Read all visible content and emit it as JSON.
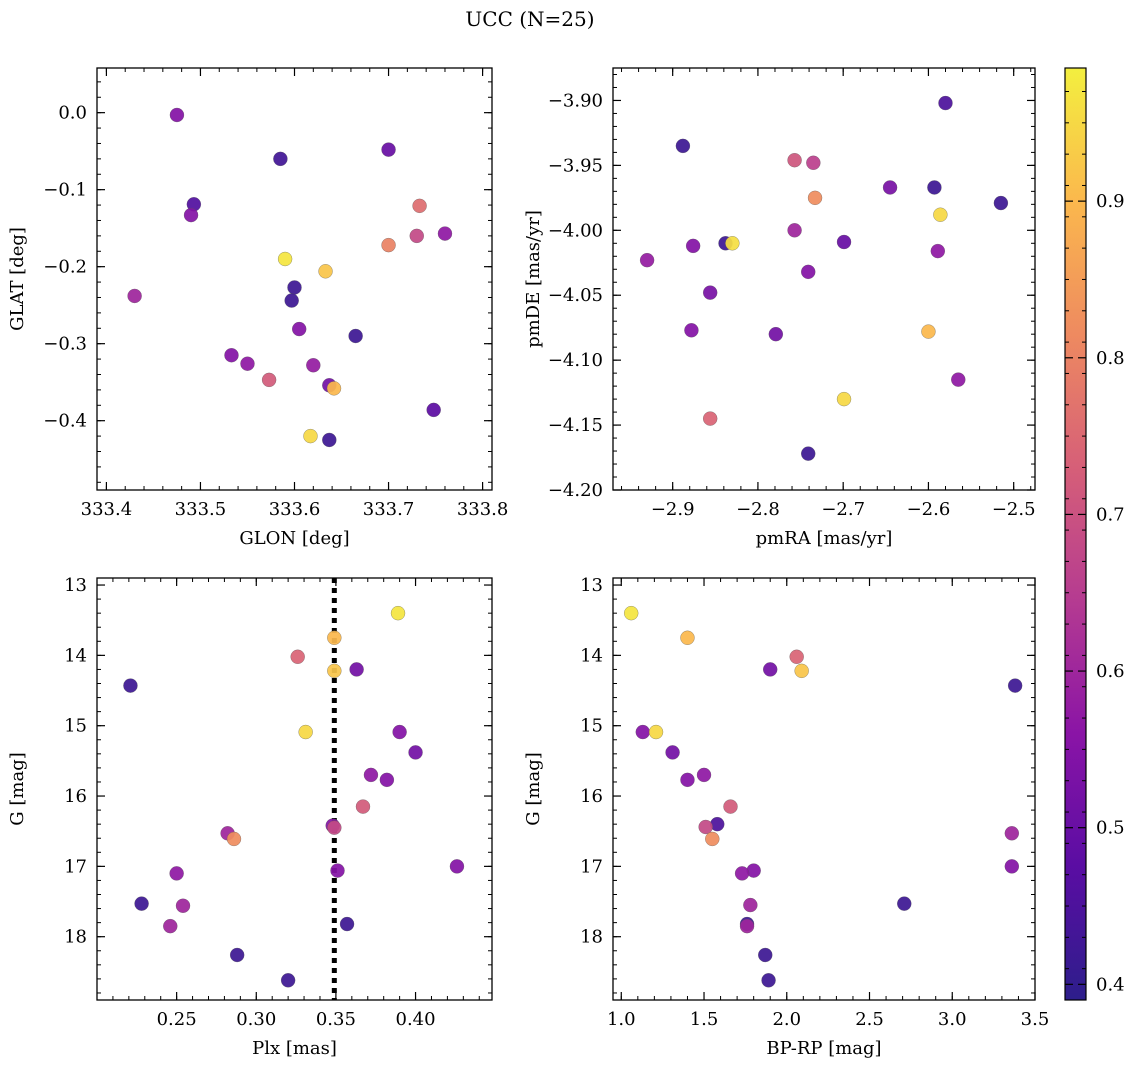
{
  "figure": {
    "title": "UCC (N=25)"
  },
  "colormap": {
    "name": "plasma",
    "vmin": 0.39,
    "vmax": 0.985,
    "ticks": [
      0.4,
      0.5,
      0.6,
      0.7,
      0.8,
      0.9
    ],
    "tick_labels": [
      "0.4",
      "0.5",
      "0.6",
      "0.7",
      "0.8",
      "0.9"
    ],
    "stops": [
      "#2d1e8b",
      "#5a0da3",
      "#8a14a6",
      "#b53b91",
      "#d65f78",
      "#ee8a60",
      "#fbb84d",
      "#f3ef3f"
    ]
  },
  "chart_data": [
    {
      "type": "scatter",
      "id": "sky",
      "xlabel": "GLON [deg]",
      "ylabel": "GLAT [deg]",
      "xlim": [
        333.39,
        333.81
      ],
      "ylim": [
        -0.49,
        0.058
      ],
      "invert_y": false,
      "xticks": [
        333.4,
        333.5,
        333.6,
        333.7,
        333.8
      ],
      "xtick_labels": [
        "333.4",
        "333.5",
        "333.6",
        "333.7",
        "333.8"
      ],
      "yticks": [
        0.0,
        -0.1,
        -0.2,
        -0.3,
        -0.4
      ],
      "ytick_labels": [
        "0.0",
        "−0.1",
        "−0.2",
        "−0.3",
        "−0.4"
      ],
      "points": [
        {
          "x": 333.475,
          "y": -0.003,
          "c": 0.55
        },
        {
          "x": 333.585,
          "y": -0.06,
          "c": 0.43
        },
        {
          "x": 333.7,
          "y": -0.048,
          "c": 0.5
        },
        {
          "x": 333.493,
          "y": -0.119,
          "c": 0.46
        },
        {
          "x": 333.49,
          "y": -0.133,
          "c": 0.55
        },
        {
          "x": 333.733,
          "y": -0.121,
          "c": 0.76
        },
        {
          "x": 333.73,
          "y": -0.16,
          "c": 0.68
        },
        {
          "x": 333.76,
          "y": -0.157,
          "c": 0.57
        },
        {
          "x": 333.7,
          "y": -0.172,
          "c": 0.8
        },
        {
          "x": 333.59,
          "y": -0.19,
          "c": 0.97
        },
        {
          "x": 333.633,
          "y": -0.206,
          "c": 0.92
        },
        {
          "x": 333.43,
          "y": -0.238,
          "c": 0.6
        },
        {
          "x": 333.6,
          "y": -0.227,
          "c": 0.42
        },
        {
          "x": 333.597,
          "y": -0.244,
          "c": 0.42
        },
        {
          "x": 333.605,
          "y": -0.281,
          "c": 0.55
        },
        {
          "x": 333.665,
          "y": -0.29,
          "c": 0.42
        },
        {
          "x": 333.533,
          "y": -0.315,
          "c": 0.55
        },
        {
          "x": 333.55,
          "y": -0.326,
          "c": 0.57
        },
        {
          "x": 333.62,
          "y": -0.328,
          "c": 0.58
        },
        {
          "x": 333.573,
          "y": -0.347,
          "c": 0.72
        },
        {
          "x": 333.637,
          "y": -0.354,
          "c": 0.52
        },
        {
          "x": 333.642,
          "y": -0.358,
          "c": 0.9
        },
        {
          "x": 333.748,
          "y": -0.386,
          "c": 0.48
        },
        {
          "x": 333.617,
          "y": -0.42,
          "c": 0.95
        },
        {
          "x": 333.637,
          "y": -0.425,
          "c": 0.42
        }
      ]
    },
    {
      "type": "scatter",
      "id": "proper-motion",
      "xlabel": "pmRA [mas/yr]",
      "ylabel": "pmDE [mas/yr]",
      "xlim": [
        -2.97,
        -2.475
      ],
      "ylim": [
        -4.2,
        -3.875
      ],
      "invert_y": false,
      "xticks": [
        -2.9,
        -2.8,
        -2.7,
        -2.6,
        -2.5
      ],
      "xtick_labels": [
        "−2.9",
        "−2.8",
        "−2.7",
        "−2.6",
        "−2.5"
      ],
      "yticks": [
        -3.9,
        -3.95,
        -4.0,
        -4.05,
        -4.1,
        -4.15,
        -4.2
      ],
      "ytick_labels": [
        "−3.90",
        "−3.95",
        "−4.00",
        "−4.05",
        "−4.10",
        "−4.15",
        "−4.20"
      ],
      "points": [
        {
          "x": -2.58,
          "y": -3.902,
          "c": 0.45
        },
        {
          "x": -2.888,
          "y": -3.935,
          "c": 0.42
        },
        {
          "x": -2.757,
          "y": -3.946,
          "c": 0.71
        },
        {
          "x": -2.735,
          "y": -3.948,
          "c": 0.66
        },
        {
          "x": -2.645,
          "y": -3.967,
          "c": 0.53
        },
        {
          "x": -2.593,
          "y": -3.967,
          "c": 0.42
        },
        {
          "x": -2.733,
          "y": -3.975,
          "c": 0.82
        },
        {
          "x": -2.515,
          "y": -3.979,
          "c": 0.42
        },
        {
          "x": -2.586,
          "y": -3.988,
          "c": 0.95
        },
        {
          "x": -2.757,
          "y": -4.0,
          "c": 0.6
        },
        {
          "x": -2.876,
          "y": -4.012,
          "c": 0.55
        },
        {
          "x": -2.838,
          "y": -4.01,
          "c": 0.42
        },
        {
          "x": -2.83,
          "y": -4.01,
          "c": 0.96
        },
        {
          "x": -2.699,
          "y": -4.009,
          "c": 0.5
        },
        {
          "x": -2.589,
          "y": -4.016,
          "c": 0.57
        },
        {
          "x": -2.93,
          "y": -4.023,
          "c": 0.58
        },
        {
          "x": -2.741,
          "y": -4.032,
          "c": 0.55
        },
        {
          "x": -2.856,
          "y": -4.048,
          "c": 0.53
        },
        {
          "x": -2.878,
          "y": -4.077,
          "c": 0.55
        },
        {
          "x": -2.779,
          "y": -4.08,
          "c": 0.52
        },
        {
          "x": -2.6,
          "y": -4.078,
          "c": 0.9
        },
        {
          "x": -2.565,
          "y": -4.115,
          "c": 0.57
        },
        {
          "x": -2.699,
          "y": -4.13,
          "c": 0.95
        },
        {
          "x": -2.856,
          "y": -4.145,
          "c": 0.74
        },
        {
          "x": -2.741,
          "y": -4.172,
          "c": 0.42
        }
      ]
    },
    {
      "type": "scatter",
      "id": "parallax-mag",
      "xlabel": "Plx [mas]",
      "ylabel": "G [mag]",
      "xlim": [
        0.2,
        0.448
      ],
      "ylim": [
        12.9,
        18.9
      ],
      "invert_y": true,
      "xticks": [
        0.25,
        0.3,
        0.35,
        0.4
      ],
      "xtick_labels": [
        "0.25",
        "0.30",
        "0.35",
        "0.40"
      ],
      "yticks": [
        13,
        14,
        15,
        16,
        17,
        18
      ],
      "ytick_labels": [
        "13",
        "14",
        "15",
        "16",
        "17",
        "18"
      ],
      "vline": {
        "x": 0.349,
        "style": "dotted"
      },
      "points": [
        {
          "x": 0.389,
          "y": 13.4,
          "c": 0.97
        },
        {
          "x": 0.349,
          "y": 13.75,
          "c": 0.9
        },
        {
          "x": 0.326,
          "y": 14.02,
          "c": 0.74
        },
        {
          "x": 0.349,
          "y": 14.22,
          "c": 0.92
        },
        {
          "x": 0.363,
          "y": 14.2,
          "c": 0.52
        },
        {
          "x": 0.221,
          "y": 14.43,
          "c": 0.42
        },
        {
          "x": 0.331,
          "y": 15.09,
          "c": 0.95
        },
        {
          "x": 0.39,
          "y": 15.09,
          "c": 0.55
        },
        {
          "x": 0.4,
          "y": 15.38,
          "c": 0.52
        },
        {
          "x": 0.372,
          "y": 15.7,
          "c": 0.57
        },
        {
          "x": 0.382,
          "y": 15.77,
          "c": 0.55
        },
        {
          "x": 0.367,
          "y": 16.15,
          "c": 0.72
        },
        {
          "x": 0.348,
          "y": 16.42,
          "c": 0.55
        },
        {
          "x": 0.349,
          "y": 16.45,
          "c": 0.68
        },
        {
          "x": 0.282,
          "y": 16.53,
          "c": 0.6
        },
        {
          "x": 0.286,
          "y": 16.61,
          "c": 0.82
        },
        {
          "x": 0.426,
          "y": 17.0,
          "c": 0.55
        },
        {
          "x": 0.351,
          "y": 17.06,
          "c": 0.55
        },
        {
          "x": 0.25,
          "y": 17.1,
          "c": 0.57
        },
        {
          "x": 0.228,
          "y": 17.53,
          "c": 0.42
        },
        {
          "x": 0.254,
          "y": 17.56,
          "c": 0.6
        },
        {
          "x": 0.357,
          "y": 17.82,
          "c": 0.42
        },
        {
          "x": 0.246,
          "y": 17.85,
          "c": 0.6
        },
        {
          "x": 0.288,
          "y": 18.26,
          "c": 0.42
        },
        {
          "x": 0.32,
          "y": 18.62,
          "c": 0.42
        }
      ]
    },
    {
      "type": "scatter",
      "id": "color-magnitude",
      "xlabel": "BP-RP [mag]",
      "ylabel": "G [mag]",
      "xlim": [
        0.95,
        3.5
      ],
      "ylim": [
        12.9,
        18.9
      ],
      "invert_y": true,
      "xticks": [
        1.0,
        1.5,
        2.0,
        2.5,
        3.0,
        3.5
      ],
      "xtick_labels": [
        "1.0",
        "1.5",
        "2.0",
        "2.5",
        "3.0",
        "3.5"
      ],
      "yticks": [
        13,
        14,
        15,
        16,
        17,
        18
      ],
      "ytick_labels": [
        "13",
        "14",
        "15",
        "16",
        "17",
        "18"
      ],
      "points": [
        {
          "x": 1.06,
          "y": 13.4,
          "c": 0.97
        },
        {
          "x": 1.4,
          "y": 13.75,
          "c": 0.9
        },
        {
          "x": 2.06,
          "y": 14.02,
          "c": 0.74
        },
        {
          "x": 1.9,
          "y": 14.2,
          "c": 0.52
        },
        {
          "x": 2.09,
          "y": 14.22,
          "c": 0.92
        },
        {
          "x": 3.38,
          "y": 14.43,
          "c": 0.42
        },
        {
          "x": 1.13,
          "y": 15.09,
          "c": 0.55
        },
        {
          "x": 1.21,
          "y": 15.09,
          "c": 0.95
        },
        {
          "x": 1.31,
          "y": 15.38,
          "c": 0.52
        },
        {
          "x": 1.5,
          "y": 15.7,
          "c": 0.57
        },
        {
          "x": 1.4,
          "y": 15.77,
          "c": 0.55
        },
        {
          "x": 1.66,
          "y": 16.15,
          "c": 0.72
        },
        {
          "x": 1.58,
          "y": 16.4,
          "c": 0.45
        },
        {
          "x": 1.51,
          "y": 16.44,
          "c": 0.68
        },
        {
          "x": 1.55,
          "y": 16.61,
          "c": 0.82
        },
        {
          "x": 3.36,
          "y": 16.53,
          "c": 0.6
        },
        {
          "x": 3.36,
          "y": 17.0,
          "c": 0.55
        },
        {
          "x": 1.8,
          "y": 17.06,
          "c": 0.55
        },
        {
          "x": 1.73,
          "y": 17.1,
          "c": 0.57
        },
        {
          "x": 1.78,
          "y": 17.55,
          "c": 0.6
        },
        {
          "x": 2.71,
          "y": 17.53,
          "c": 0.42
        },
        {
          "x": 1.76,
          "y": 17.82,
          "c": 0.42
        },
        {
          "x": 1.76,
          "y": 17.85,
          "c": 0.6
        },
        {
          "x": 1.87,
          "y": 18.26,
          "c": 0.42
        },
        {
          "x": 1.89,
          "y": 18.62,
          "c": 0.42
        }
      ]
    }
  ]
}
